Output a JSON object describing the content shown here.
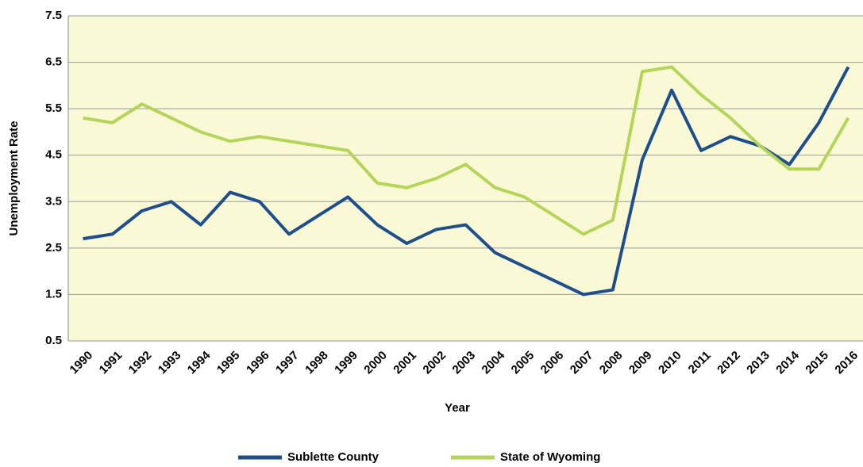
{
  "chart_data": {
    "type": "line",
    "x_label": "Year",
    "y_label": "Unemployment Rate",
    "categories": [
      "1990",
      "1991",
      "1992",
      "1993",
      "1994",
      "1995",
      "1996",
      "1997",
      "1998",
      "1999",
      "2000",
      "2001",
      "2002",
      "2003",
      "2004",
      "2005",
      "2006",
      "2007",
      "2008",
      "2009",
      "2010",
      "2011",
      "2012",
      "2013",
      "2014",
      "2015",
      "2016"
    ],
    "series": [
      {
        "name": "Sublette County",
        "color": "#1f4e8c",
        "values": [
          2.7,
          2.8,
          3.3,
          3.5,
          3.0,
          3.7,
          3.5,
          2.8,
          3.2,
          3.6,
          3.0,
          2.6,
          2.9,
          3.0,
          2.4,
          2.1,
          1.8,
          1.5,
          1.6,
          4.4,
          5.9,
          4.6,
          4.9,
          4.7,
          4.3,
          5.2,
          6.4
        ]
      },
      {
        "name": "State of Wyoming",
        "color": "#b5d55a",
        "values": [
          5.3,
          5.2,
          5.6,
          5.3,
          5.0,
          4.8,
          4.9,
          4.8,
          4.7,
          4.6,
          3.9,
          3.8,
          4.0,
          4.3,
          3.8,
          3.6,
          3.2,
          2.8,
          3.1,
          6.3,
          6.4,
          5.8,
          5.3,
          4.7,
          4.2,
          4.2,
          5.3
        ]
      }
    ],
    "ylim": [
      0.5,
      7.5
    ],
    "yticks": [
      0.5,
      1.5,
      2.5,
      3.5,
      4.5,
      5.5,
      6.5,
      7.5
    ],
    "grid": true,
    "legend": "bottom"
  }
}
